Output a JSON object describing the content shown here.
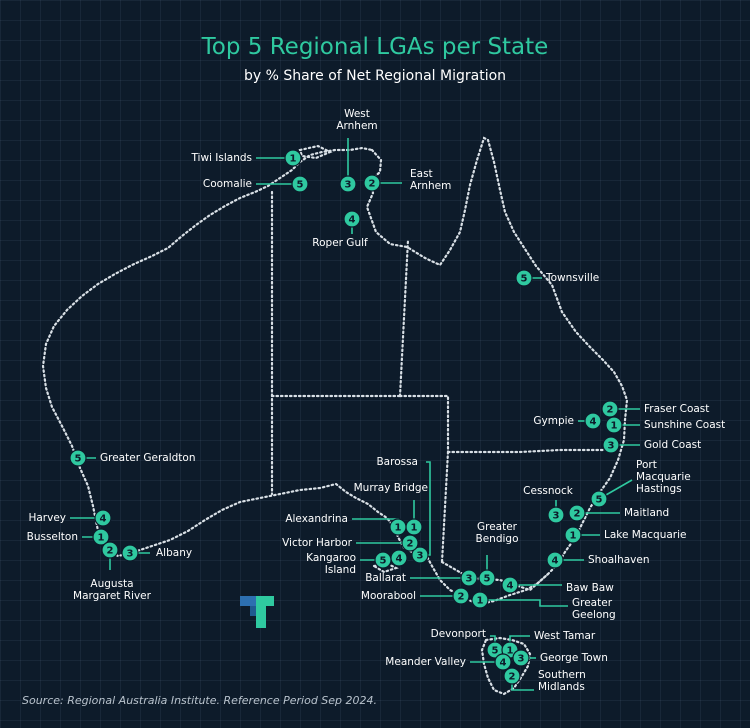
{
  "title": "Top 5 Regional LGAs per State",
  "subtitle": "by % Share of Net Regional Migration",
  "source": "Source: Regional Australia Institute. Reference Period Sep 2024.",
  "colors": {
    "background": "#0d1b2a",
    "accent": "#2fc9a0",
    "text": "#ffffff",
    "outline": "#d9e0e6"
  },
  "logo": {
    "name": "logo-icon"
  },
  "lgas": [
    {
      "id": "nt-tiwi",
      "state": "NT",
      "rank": 1,
      "label": "Tiwi Islands"
    },
    {
      "id": "nt-coomalie",
      "state": "NT",
      "rank": 5,
      "label": "Coomalie"
    },
    {
      "id": "nt-west-arnhem",
      "state": "NT",
      "rank": 3,
      "label": "West\nArnhem"
    },
    {
      "id": "nt-east-arnhem",
      "state": "NT",
      "rank": 2,
      "label": "East\nArnhem"
    },
    {
      "id": "nt-roper",
      "state": "NT",
      "rank": 4,
      "label": "Roper Gulf"
    },
    {
      "id": "qld-townsville",
      "state": "QLD",
      "rank": 5,
      "label": "Townsville"
    },
    {
      "id": "qld-fraser",
      "state": "QLD",
      "rank": 2,
      "label": "Fraser Coast"
    },
    {
      "id": "qld-gympie",
      "state": "QLD",
      "rank": 4,
      "label": "Gympie"
    },
    {
      "id": "qld-sunshine",
      "state": "QLD",
      "rank": 1,
      "label": "Sunshine Coast"
    },
    {
      "id": "qld-gold",
      "state": "QLD",
      "rank": 3,
      "label": "Gold Coast"
    },
    {
      "id": "nsw-port",
      "state": "NSW",
      "rank": 5,
      "label": "Port\nMacquarie\nHastings"
    },
    {
      "id": "nsw-cessnock",
      "state": "NSW",
      "rank": 3,
      "label": "Cessnock"
    },
    {
      "id": "nsw-maitland",
      "state": "NSW",
      "rank": 2,
      "label": "Maitland"
    },
    {
      "id": "nsw-lake",
      "state": "NSW",
      "rank": 1,
      "label": "Lake Macquarie"
    },
    {
      "id": "nsw-shoal",
      "state": "NSW",
      "rank": 4,
      "label": "Shoalhaven"
    },
    {
      "id": "wa-geraldton",
      "state": "WA",
      "rank": 5,
      "label": "Greater Geraldton"
    },
    {
      "id": "wa-harvey",
      "state": "WA",
      "rank": 4,
      "label": "Harvey"
    },
    {
      "id": "wa-busselton",
      "state": "WA",
      "rank": 1,
      "label": "Busselton"
    },
    {
      "id": "wa-augusta",
      "state": "WA",
      "rank": 2,
      "label": "Augusta\nMargaret River"
    },
    {
      "id": "wa-albany",
      "state": "WA",
      "rank": 3,
      "label": "Albany"
    },
    {
      "id": "sa-barossa",
      "state": "SA",
      "rank": 3,
      "label": "Barossa"
    },
    {
      "id": "sa-murray",
      "state": "SA",
      "rank": 1,
      "label": "Murray Bridge"
    },
    {
      "id": "sa-alexandrina",
      "state": "SA",
      "rank": 1,
      "label": "Alexandrina"
    },
    {
      "id": "sa-victor",
      "state": "SA",
      "rank": 2,
      "label": "Victor Harbor"
    },
    {
      "id": "sa-kangaroo",
      "state": "SA",
      "rank": 5,
      "label": "Kangaroo\nIsland"
    },
    {
      "id": "sa-extra",
      "state": "SA",
      "rank": 4,
      "label": ""
    },
    {
      "id": "vic-bendigo",
      "state": "VIC",
      "rank": 5,
      "label": "Greater\nBendigo"
    },
    {
      "id": "vic-ballarat",
      "state": "VIC",
      "rank": 3,
      "label": "Ballarat"
    },
    {
      "id": "vic-bawbaw",
      "state": "VIC",
      "rank": 4,
      "label": "Baw Baw"
    },
    {
      "id": "vic-moorabool",
      "state": "VIC",
      "rank": 2,
      "label": "Moorabool"
    },
    {
      "id": "vic-geelong",
      "state": "VIC",
      "rank": 1,
      "label": "Greater\nGeelong"
    },
    {
      "id": "tas-devonport",
      "state": "TAS",
      "rank": 5,
      "label": "Devonport"
    },
    {
      "id": "tas-westtamar",
      "state": "TAS",
      "rank": 1,
      "label": "West Tamar"
    },
    {
      "id": "tas-meander",
      "state": "TAS",
      "rank": 4,
      "label": "Meander Valley"
    },
    {
      "id": "tas-george",
      "state": "TAS",
      "rank": 3,
      "label": "George Town"
    },
    {
      "id": "tas-southern",
      "state": "TAS",
      "rank": 2,
      "label": "Southern\nMidlands"
    }
  ]
}
